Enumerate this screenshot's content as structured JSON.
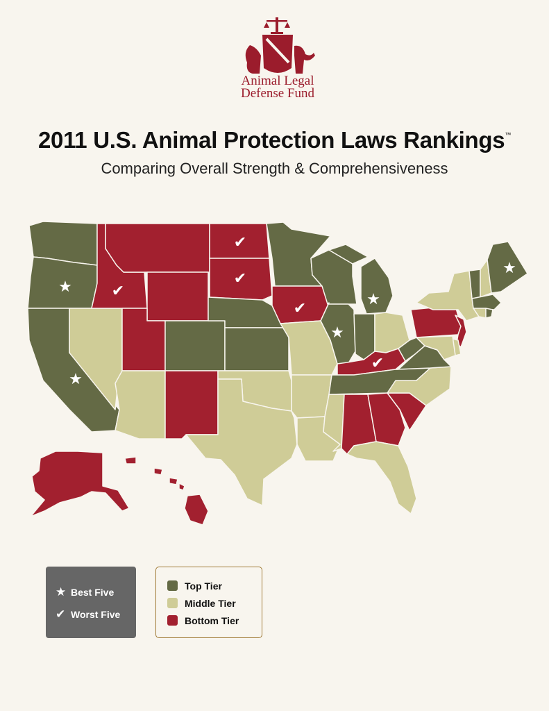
{
  "logo": {
    "line1": "Animal Legal",
    "line2": "Defense Fund"
  },
  "title": "2011 U.S. Animal Protection Laws Rankings",
  "trademark": "™",
  "subtitle": "Comparing Overall Strength & Comprehensiveness",
  "colors": {
    "top": "#646a45",
    "middle": "#cfcc97",
    "bottom": "#a2202f",
    "background": "#f8f5ee"
  },
  "legend_symbols": [
    {
      "icon": "star-icon",
      "glyph": "★",
      "label": "Best Five"
    },
    {
      "icon": "check-icon",
      "glyph": "✔",
      "label": "Worst Five"
    }
  ],
  "legend_tiers": [
    {
      "key": "top",
      "label": "Top Tier"
    },
    {
      "key": "middle",
      "label": "Middle Tier"
    },
    {
      "key": "bottom",
      "label": "Bottom Tier"
    }
  ],
  "best_five": [
    "Oregon",
    "California",
    "Illinois",
    "Michigan",
    "Maine"
  ],
  "worst_five": [
    "Idaho",
    "North Dakota",
    "South Dakota",
    "Iowa",
    "Kentucky"
  ],
  "tiers": {
    "top": [
      "Washington",
      "Oregon",
      "California",
      "Colorado",
      "Nebraska",
      "Kansas",
      "Minnesota",
      "Wisconsin",
      "Michigan",
      "Illinois",
      "Indiana",
      "Tennessee",
      "West Virginia",
      "Virginia",
      "Maine",
      "Vermont",
      "Massachusetts",
      "Rhode Island"
    ],
    "middle": [
      "Nevada",
      "Arizona",
      "Texas",
      "Oklahoma",
      "Missouri",
      "Arkansas",
      "Louisiana",
      "Mississippi",
      "Florida",
      "North Carolina",
      "Ohio",
      "New York",
      "New Hampshire",
      "Connecticut",
      "Maryland",
      "Delaware"
    ],
    "bottom": [
      "Idaho",
      "Montana",
      "Wyoming",
      "Utah",
      "New Mexico",
      "North Dakota",
      "South Dakota",
      "Iowa",
      "Kentucky",
      "Alabama",
      "Georgia",
      "South Carolina",
      "Pennsylvania",
      "New Jersey",
      "Alaska",
      "Hawaii"
    ]
  }
}
